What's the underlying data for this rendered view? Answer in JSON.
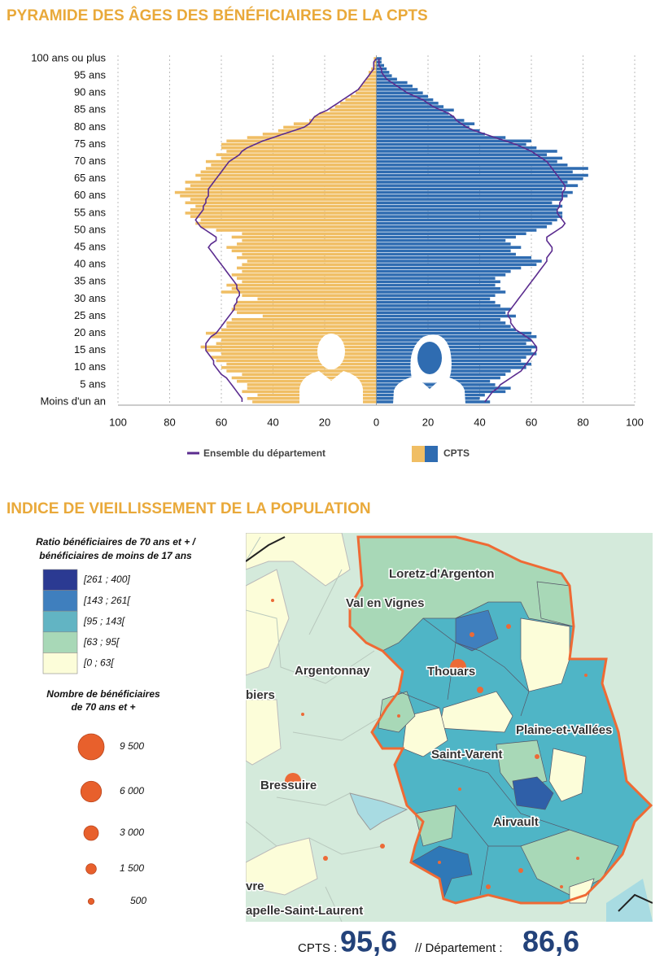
{
  "chart_data": {
    "type": "pyramid",
    "title": "PYRAMIDE DES ÂGES DES BÉNÉFICIAIRES DE LA CPTS",
    "categories": [
      "Moins d'un an",
      null,
      null,
      null,
      null,
      "5 ans",
      null,
      null,
      null,
      null,
      "10 ans",
      null,
      null,
      null,
      null,
      "15 ans",
      null,
      null,
      null,
      null,
      "20 ans",
      null,
      null,
      null,
      null,
      "25 ans",
      null,
      null,
      null,
      null,
      "30 ans",
      null,
      null,
      null,
      null,
      "35 ans",
      null,
      null,
      null,
      null,
      "40 ans",
      null,
      null,
      null,
      null,
      "45 ans",
      null,
      null,
      null,
      null,
      "50 ans",
      null,
      null,
      null,
      null,
      "55 ans",
      null,
      null,
      null,
      null,
      "60 ans",
      null,
      null,
      null,
      null,
      "65 ans",
      null,
      null,
      null,
      null,
      "70 ans",
      null,
      null,
      null,
      null,
      "75 ans",
      null,
      null,
      null,
      null,
      "80 ans",
      null,
      null,
      null,
      null,
      "85 ans",
      null,
      null,
      null,
      null,
      "90 ans",
      null,
      null,
      null,
      null,
      "95 ans",
      null,
      null,
      null,
      null,
      "100 ans ou plus"
    ],
    "series": [
      {
        "name": "Ensemble du département",
        "type": "line",
        "color": "#5b2c8f",
        "left": [
          52,
          52,
          53,
          54,
          55,
          56,
          57,
          58,
          60,
          61,
          62,
          63,
          63,
          64,
          65,
          66,
          66,
          66,
          65,
          64,
          62,
          61,
          60,
          59,
          58,
          57,
          56,
          55,
          55,
          54,
          54,
          53,
          53,
          54,
          54,
          55,
          56,
          57,
          58,
          59,
          60,
          61,
          62,
          63,
          64,
          65,
          64,
          62,
          62,
          64,
          66,
          68,
          69,
          70,
          69,
          68,
          67,
          67,
          66,
          66,
          65,
          65,
          65,
          64,
          63,
          62,
          61,
          60,
          59,
          58,
          57,
          55,
          53,
          52,
          50,
          47,
          44,
          40,
          36,
          32,
          28,
          26,
          25,
          24,
          22,
          19,
          17,
          15,
          13,
          11,
          9,
          7,
          6,
          5,
          4,
          3,
          2,
          1,
          1,
          1,
          0
        ],
        "right": [
          42,
          43,
          44,
          45,
          47,
          48,
          50,
          52,
          54,
          56,
          57,
          58,
          59,
          60,
          61,
          62,
          62,
          61,
          60,
          58,
          56,
          54,
          53,
          52,
          52,
          51,
          51,
          52,
          53,
          54,
          55,
          56,
          57,
          58,
          59,
          60,
          61,
          62,
          63,
          64,
          65,
          66,
          66,
          67,
          68,
          68,
          67,
          66,
          66,
          68,
          70,
          72,
          73,
          72,
          71,
          70,
          70,
          71,
          71,
          72,
          72,
          72,
          73,
          73,
          72,
          71,
          70,
          69,
          68,
          67,
          66,
          64,
          62,
          60,
          57,
          54,
          50,
          46,
          42,
          38,
          35,
          33,
          31,
          30,
          28,
          25,
          22,
          20,
          18,
          15,
          12,
          10,
          8,
          6,
          4,
          3,
          2,
          2,
          1,
          1,
          1
        ]
      },
      {
        "name": "CPTS",
        "type": "bar",
        "colors": [
          "#f0be64",
          "#2f6cb1"
        ],
        "left": [
          48,
          50,
          46,
          52,
          50,
          50,
          54,
          56,
          52,
          58,
          60,
          58,
          62,
          64,
          60,
          66,
          68,
          62,
          60,
          64,
          66,
          60,
          58,
          58,
          56,
          44,
          54,
          56,
          55,
          54,
          46,
          52,
          60,
          56,
          58,
          52,
          54,
          56,
          52,
          54,
          52,
          50,
          54,
          52,
          56,
          58,
          54,
          52,
          56,
          52,
          62,
          68,
          70,
          68,
          72,
          74,
          72,
          70,
          74,
          72,
          76,
          78,
          74,
          72,
          74,
          68,
          70,
          68,
          66,
          64,
          66,
          60,
          62,
          58,
          60,
          60,
          58,
          50,
          44,
          38,
          36,
          32,
          26,
          24,
          22,
          18,
          16,
          14,
          12,
          10,
          8,
          7,
          6,
          5,
          4,
          3,
          3,
          2,
          1,
          1,
          1
        ],
        "right": [
          44,
          40,
          42,
          50,
          52,
          46,
          44,
          48,
          50,
          52,
          58,
          60,
          56,
          58,
          62,
          60,
          62,
          58,
          60,
          62,
          60,
          54,
          52,
          50,
          48,
          54,
          50,
          52,
          48,
          46,
          44,
          46,
          50,
          48,
          46,
          48,
          46,
          50,
          52,
          56,
          62,
          64,
          60,
          54,
          52,
          56,
          52,
          50,
          54,
          58,
          62,
          66,
          68,
          70,
          72,
          72,
          70,
          72,
          68,
          72,
          74,
          76,
          72,
          78,
          74,
          80,
          82,
          76,
          82,
          74,
          70,
          72,
          66,
          70,
          62,
          58,
          60,
          50,
          42,
          40,
          36,
          38,
          34,
          30,
          28,
          30,
          26,
          24,
          22,
          20,
          18,
          16,
          14,
          12,
          8,
          6,
          5,
          4,
          3,
          2,
          2
        ]
      }
    ],
    "xlim": [
      -100,
      100
    ],
    "xticks": [
      {
        "value": -100,
        "label": "100"
      },
      {
        "value": -80,
        "label": "80"
      },
      {
        "value": -60,
        "label": "60"
      },
      {
        "value": -40,
        "label": "40"
      },
      {
        "value": -20,
        "label": "20"
      },
      0,
      20,
      40,
      60,
      80,
      100
    ],
    "grid": true
  },
  "map": {
    "title": "INDICE DE VIEILLISSEMENT DE LA POPULATION",
    "legend": {
      "title_lines": [
        "Ratio bénéficiaires de 70 ans et + /",
        "bénéficiaires de moins de 17 ans"
      ],
      "classes": [
        {
          "label": "[261 ; 400]",
          "color": "#2b3a92"
        },
        {
          "label": "[143 ; 261[",
          "color": "#3f7fbe"
        },
        {
          "label": "[95 ; 143[",
          "color": "#62b4c3"
        },
        {
          "label": "[63 ; 95[",
          "color": "#a8d8b7"
        },
        {
          "label": "[0 ; 63[",
          "color": "#fcfdd9"
        }
      ],
      "size_title_lines": [
        "Nombre de bénéficiaires",
        "de 70 ans et +"
      ],
      "sizes": [
        {
          "value": 9500,
          "label": "9 500"
        },
        {
          "value": 6000,
          "label": "6 000"
        },
        {
          "value": 3000,
          "label": "3 000"
        },
        {
          "value": 1500,
          "label": "1 500"
        },
        500
      ]
    },
    "places": [
      "Loretz-d'Argenton",
      "Val en Vignes",
      "Argentonnay",
      "Thouars",
      "biers",
      "Plaine-et-Vallées",
      "Saint-Varent",
      "Bressuire",
      "Airvault",
      "vre",
      "apelle-Saint-Laurent"
    ],
    "footer": {
      "cpts_label": "CPTS :",
      "cpts_value": "95,6",
      "dept_label": "// Département :",
      "dept_value": "86,6"
    }
  }
}
